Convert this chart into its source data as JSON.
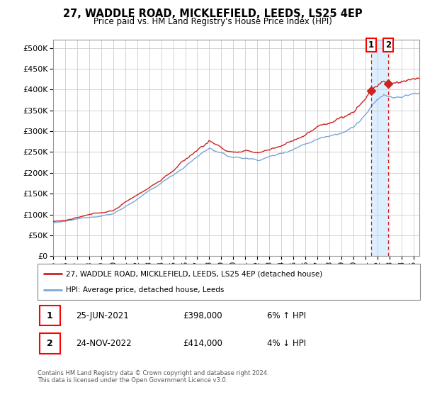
{
  "title": "27, WADDLE ROAD, MICKLEFIELD, LEEDS, LS25 4EP",
  "subtitle": "Price paid vs. HM Land Registry's House Price Index (HPI)",
  "ytick_values": [
    0,
    50000,
    100000,
    150000,
    200000,
    250000,
    300000,
    350000,
    400000,
    450000,
    500000
  ],
  "ylim": [
    0,
    520000
  ],
  "xlim_start": 1995.0,
  "xlim_end": 2025.5,
  "hpi_color": "#7aa8d4",
  "price_color": "#cc2222",
  "shade_color": "#ddeeff",
  "transaction1": {
    "date": 2021.48,
    "price": 398000,
    "label": "1"
  },
  "transaction2": {
    "date": 2022.9,
    "price": 414000,
    "label": "2"
  },
  "legend_line1": "27, WADDLE ROAD, MICKLEFIELD, LEEDS, LS25 4EP (detached house)",
  "legend_line2": "HPI: Average price, detached house, Leeds",
  "table_row1_num": "1",
  "table_row1_date": "25-JUN-2021",
  "table_row1_price": "£398,000",
  "table_row1_hpi": "6% ↑ HPI",
  "table_row2_num": "2",
  "table_row2_date": "24-NOV-2022",
  "table_row2_price": "£414,000",
  "table_row2_hpi": "4% ↓ HPI",
  "footnote": "Contains HM Land Registry data © Crown copyright and database right 2024.\nThis data is licensed under the Open Government Licence v3.0.",
  "xtick_years": [
    1995,
    1996,
    1997,
    1998,
    1999,
    2000,
    2001,
    2002,
    2003,
    2004,
    2005,
    2006,
    2007,
    2008,
    2009,
    2010,
    2011,
    2012,
    2013,
    2014,
    2015,
    2016,
    2017,
    2018,
    2019,
    2020,
    2021,
    2022,
    2023,
    2024,
    2025
  ],
  "grid_color": "#cccccc"
}
